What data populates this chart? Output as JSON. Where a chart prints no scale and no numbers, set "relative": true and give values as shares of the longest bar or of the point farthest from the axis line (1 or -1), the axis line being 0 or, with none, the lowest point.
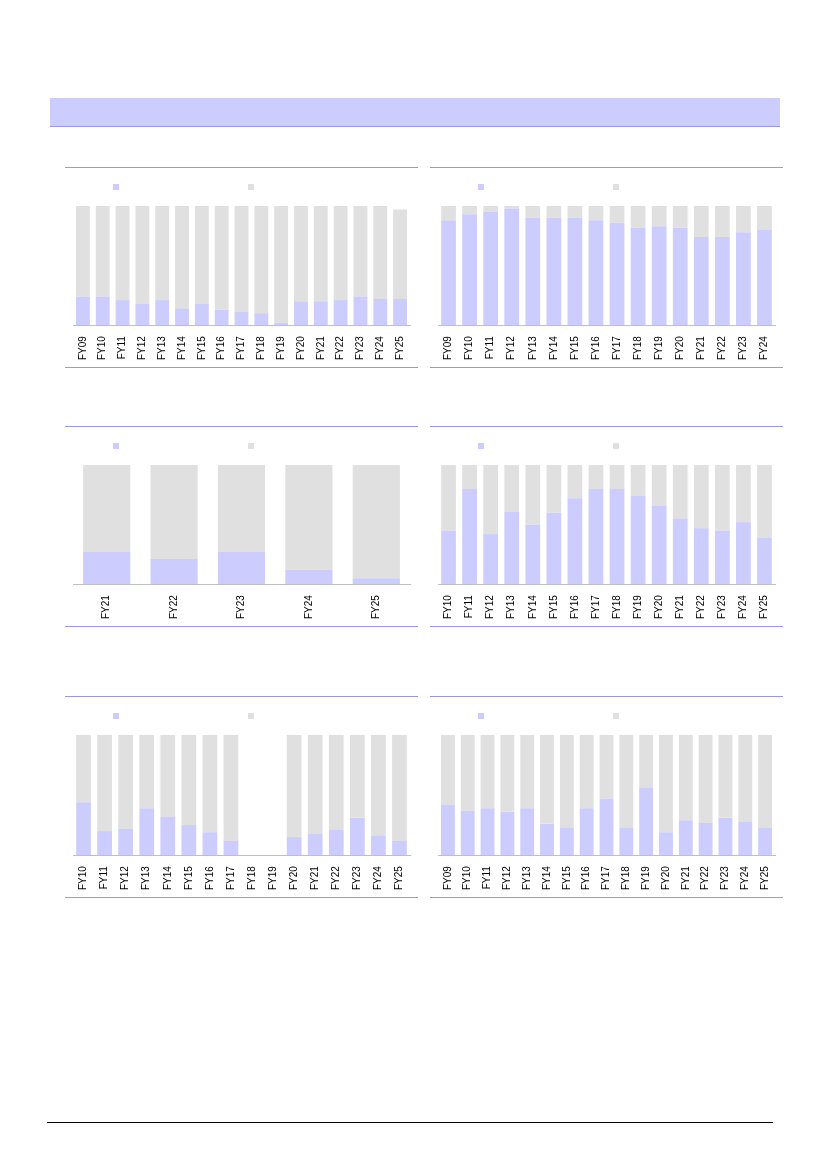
{
  "chart_data": [
    {
      "type": "bar",
      "stacked": true,
      "relative": true,
      "categories": [
        "FY09",
        "FY10",
        "FY11",
        "FY12",
        "FY13",
        "FY14",
        "FY15",
        "FY16",
        "FY17",
        "FY18",
        "FY19",
        "FY20",
        "FY21",
        "FY22",
        "FY23",
        "FY24",
        "FY25"
      ],
      "series": [
        {
          "color": "#ccccff",
          "values": [
            0.24,
            0.24,
            0.21,
            0.18,
            0.21,
            0.14,
            0.18,
            0.13,
            0.11,
            0.1,
            0.02,
            0.2,
            0.2,
            0.21,
            0.24,
            0.22,
            0.22
          ]
        },
        {
          "color": "#e0e0e0",
          "values": [
            0.76,
            0.76,
            0.79,
            0.82,
            0.79,
            0.86,
            0.82,
            0.87,
            0.89,
            0.9,
            0.98,
            0.8,
            0.8,
            0.79,
            0.76,
            0.78,
            0.75
          ]
        }
      ]
    },
    {
      "type": "bar",
      "stacked": true,
      "relative": true,
      "categories": [
        "FY09",
        "FY10",
        "FY11",
        "FY12",
        "FY13",
        "FY14",
        "FY15",
        "FY16",
        "FY17",
        "FY18",
        "FY19",
        "FY20",
        "FY21",
        "FY22",
        "FY23",
        "FY24"
      ],
      "series": [
        {
          "color": "#ccccff",
          "values": [
            0.88,
            0.93,
            0.95,
            0.98,
            0.9,
            0.9,
            0.9,
            0.88,
            0.86,
            0.82,
            0.83,
            0.82,
            0.74,
            0.74,
            0.78,
            0.8
          ]
        },
        {
          "color": "#e0e0e0",
          "values": [
            0.12,
            0.07,
            0.05,
            0.02,
            0.1,
            0.1,
            0.1,
            0.12,
            0.14,
            0.18,
            0.17,
            0.18,
            0.26,
            0.26,
            0.22,
            0.2
          ]
        }
      ]
    },
    {
      "type": "bar",
      "stacked": true,
      "relative": true,
      "categories": [
        "FY21",
        "FY22",
        "FY23",
        "FY24",
        "FY25"
      ],
      "series": [
        {
          "color": "#ccccff",
          "values": [
            0.27,
            0.21,
            0.27,
            0.12,
            0.05
          ]
        },
        {
          "color": "#e0e0e0",
          "values": [
            0.73,
            0.79,
            0.73,
            0.88,
            0.95
          ]
        }
      ]
    },
    {
      "type": "bar",
      "stacked": true,
      "relative": true,
      "categories": [
        "FY10",
        "FY11",
        "FY12",
        "FY13",
        "FY14",
        "FY15",
        "FY16",
        "FY17",
        "FY18",
        "FY19",
        "FY20",
        "FY21",
        "FY22",
        "FY23",
        "FY24",
        "FY25"
      ],
      "series": [
        {
          "color": "#ccccff",
          "values": [
            0.45,
            0.8,
            0.42,
            0.61,
            0.5,
            0.6,
            0.72,
            0.8,
            0.8,
            0.74,
            0.66,
            0.55,
            0.47,
            0.45,
            0.52,
            0.39
          ]
        },
        {
          "color": "#e0e0e0",
          "values": [
            0.55,
            0.2,
            0.58,
            0.39,
            0.5,
            0.4,
            0.28,
            0.2,
            0.2,
            0.26,
            0.34,
            0.45,
            0.53,
            0.55,
            0.48,
            0.61
          ]
        }
      ]
    },
    {
      "type": "bar",
      "stacked": true,
      "relative": true,
      "categories": [
        "FY10",
        "FY11",
        "FY12",
        "FY13",
        "FY14",
        "FY15",
        "FY16",
        "FY17",
        "FY18",
        "FY19",
        "FY20",
        "FY21",
        "FY22",
        "FY23",
        "FY24",
        "FY25"
      ],
      "series": [
        {
          "color": "#ccccff",
          "values": [
            0.44,
            0.2,
            0.22,
            0.39,
            0.32,
            0.25,
            0.19,
            0.12,
            null,
            null,
            0.15,
            0.18,
            0.21,
            0.31,
            0.16,
            0.12
          ]
        },
        {
          "color": "#e0e0e0",
          "values": [
            0.56,
            0.8,
            0.78,
            0.61,
            0.68,
            0.75,
            0.81,
            0.88,
            null,
            null,
            0.85,
            0.82,
            0.79,
            0.69,
            0.84,
            0.88
          ]
        }
      ]
    },
    {
      "type": "bar",
      "stacked": true,
      "relative": true,
      "categories": [
        "FY09",
        "FY10",
        "FY11",
        "FY12",
        "FY13",
        "FY14",
        "FY15",
        "FY16",
        "FY17",
        "FY18",
        "FY19",
        "FY20",
        "FY21",
        "FY22",
        "FY23",
        "FY24",
        "FY25"
      ],
      "series": [
        {
          "color": "#ccccff",
          "values": [
            0.42,
            0.37,
            0.39,
            0.36,
            0.39,
            0.26,
            0.23,
            0.39,
            0.47,
            0.23,
            0.56,
            0.19,
            0.29,
            0.27,
            0.31,
            0.28,
            0.23
          ]
        },
        {
          "color": "#e0e0e0",
          "values": [
            0.58,
            0.63,
            0.61,
            0.64,
            0.61,
            0.74,
            0.77,
            0.61,
            0.53,
            0.77,
            0.44,
            0.81,
            0.71,
            0.73,
            0.69,
            0.72,
            0.77
          ]
        }
      ]
    }
  ]
}
